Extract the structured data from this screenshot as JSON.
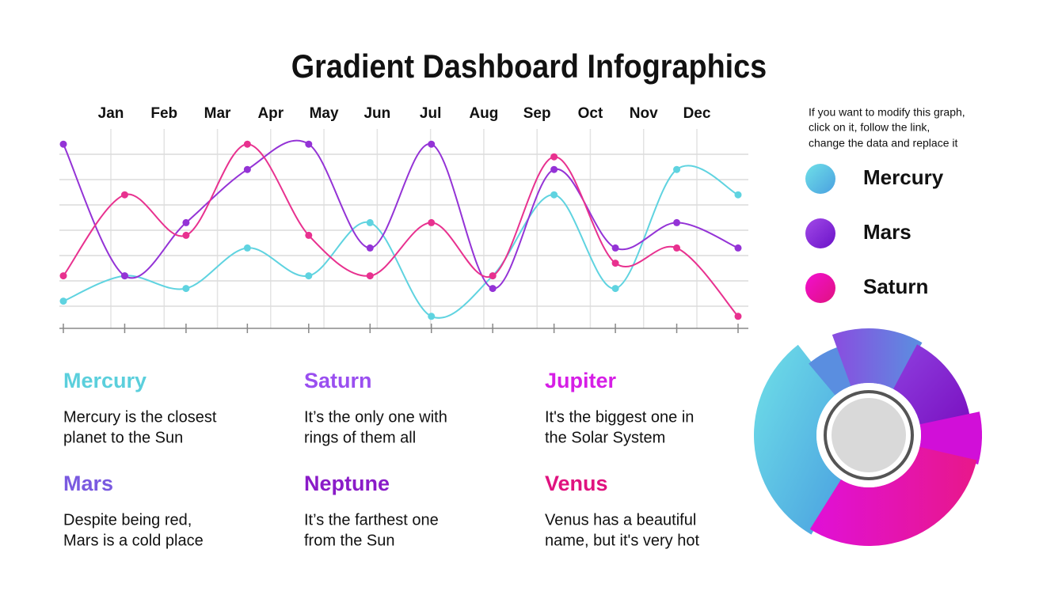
{
  "title": "Gradient Dashboard Infographics",
  "note": [
    "If you want to modify this graph,",
    "click on it, follow the link,",
    "change the data and replace it"
  ],
  "chart_data": {
    "type": "line",
    "categories": [
      "Jan",
      "Feb",
      "Mar",
      "Apr",
      "May",
      "Jun",
      "Jul",
      "Aug",
      "Sep",
      "Oct",
      "Nov",
      "Dec"
    ],
    "series": [
      {
        "name": "Mercury",
        "color": "#5fd3e0",
        "values": [
          1.2,
          2.2,
          1.7,
          3.3,
          2.2,
          4.3,
          0.6,
          2.2,
          5.4,
          1.7,
          6.4,
          5.4
        ]
      },
      {
        "name": "Mars",
        "color": "#9433d6",
        "values": [
          7.4,
          2.2,
          4.3,
          6.4,
          7.4,
          3.3,
          7.4,
          1.7,
          6.4,
          3.3,
          4.3,
          3.3
        ]
      },
      {
        "name": "Saturn",
        "color": "#e8318f",
        "values": [
          2.2,
          5.4,
          3.8,
          7.4,
          3.8,
          2.2,
          4.3,
          2.2,
          6.9,
          2.7,
          3.3,
          0.6
        ]
      }
    ],
    "ylim": [
      0,
      8
    ],
    "yticks": [
      1,
      2,
      3,
      4,
      5,
      6,
      7
    ],
    "grid": true
  },
  "planets": [
    {
      "name": "Mercury",
      "color": "#5bcfdc",
      "description": [
        "Mercury is the closest",
        "planet to the Sun"
      ]
    },
    {
      "name": "Saturn",
      "color": "#9a4ff0",
      "description": [
        "It’s the only one with",
        "rings of them all"
      ]
    },
    {
      "name": "Jupiter",
      "color": "#d61ee6",
      "description": [
        "It's the biggest one in",
        "the Solar System"
      ]
    },
    {
      "name": "Mars",
      "color": "#7a5ae0",
      "description": [
        "Despite being red,",
        "Mars is a cold place"
      ]
    },
    {
      "name": "Neptune",
      "color": "#8a1bc8",
      "description": [
        "It’s the farthest one",
        "from the Sun"
      ]
    },
    {
      "name": "Venus",
      "color": "#e0127f",
      "description": [
        "Venus has a beautiful",
        "name, but it's very hot"
      ]
    }
  ]
}
